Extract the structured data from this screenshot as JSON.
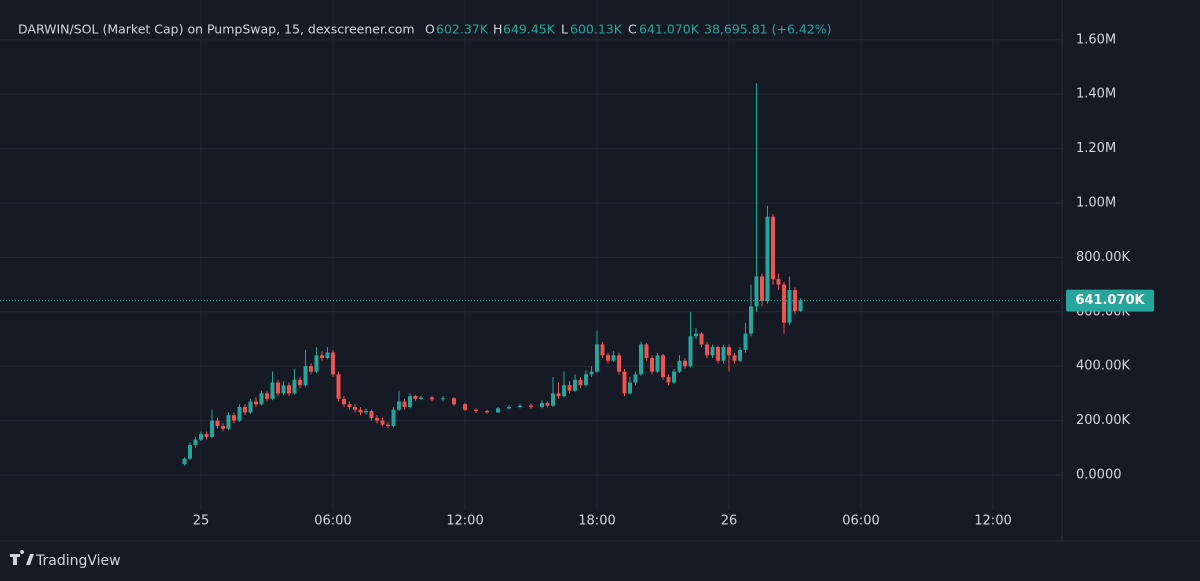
{
  "chart_data": {
    "type": "candlestick",
    "title": "DARWIN/SOL (Market Cap) on PumpSwap, 15, dexscreener.com",
    "header": {
      "o_key": "O",
      "o": "602.37K",
      "h_key": "H",
      "h": "649.45K",
      "l_key": "L",
      "l": "600.13K",
      "c_key": "C",
      "c": "641.070K",
      "change": "38,695.81 (+6.42%)"
    },
    "up_color": "#26a69a",
    "down_color": "#ef5350",
    "grid": true,
    "xlim": [
      -9.136,
      39.136
    ],
    "xticks": [
      {
        "value": 0,
        "label": "25"
      },
      {
        "value": 6,
        "label": "06:00"
      },
      {
        "value": 12,
        "label": "12:00"
      },
      {
        "value": 18,
        "label": "18:00"
      },
      {
        "value": 24,
        "label": "26"
      },
      {
        "value": 30,
        "label": "06:00"
      },
      {
        "value": 36,
        "label": "12:00"
      }
    ],
    "ylim": [
      -128700,
      1746300
    ],
    "yticks": [
      {
        "value": 0,
        "label": "0.0000"
      },
      {
        "value": 200000,
        "label": "200.00K"
      },
      {
        "value": 400000,
        "label": "400.00K"
      },
      {
        "value": 600000,
        "label": "600.00K"
      },
      {
        "value": 800000,
        "label": "800.00K"
      },
      {
        "value": 1000000,
        "label": "1.00M"
      },
      {
        "value": 1200000,
        "label": "1.20M"
      },
      {
        "value": 1400000,
        "label": "1.40M"
      },
      {
        "value": 1600000,
        "label": "1.60M"
      }
    ],
    "last_price": {
      "value": 641070,
      "label": "641.070K"
    },
    "x": [
      -0.75,
      -0.5,
      -0.25,
      0,
      0.25,
      0.5,
      0.75,
      1,
      1.25,
      1.5,
      1.75,
      2,
      2.25,
      2.5,
      2.75,
      3,
      3.25,
      3.5,
      3.75,
      4,
      4.25,
      4.5,
      4.75,
      5,
      5.25,
      5.5,
      5.75,
      6,
      6.25,
      6.5,
      6.75,
      7,
      7.25,
      7.5,
      7.75,
      8,
      8.25,
      8.5,
      8.75,
      9,
      9.25,
      9.5,
      9.75,
      10,
      10.5,
      11,
      11.5,
      12,
      12.5,
      13,
      13.5,
      14,
      14.5,
      15,
      15.5,
      15.75,
      16,
      16.25,
      16.5,
      16.75,
      17,
      17.25,
      17.5,
      17.75,
      18,
      18.25,
      18.5,
      18.75,
      19,
      19.25,
      19.5,
      19.75,
      20,
      20.25,
      20.5,
      20.75,
      21,
      21.25,
      21.5,
      21.75,
      22,
      22.25,
      22.5,
      22.75,
      23,
      23.25,
      23.5,
      23.75,
      24,
      24.25,
      24.5,
      24.75,
      25,
      25.25,
      25.5,
      25.75,
      26,
      26.25,
      26.5,
      26.75,
      27,
      27.25
    ],
    "open": [
      40000,
      60000,
      110000,
      130000,
      150000,
      140000,
      200000,
      180000,
      170000,
      220000,
      200000,
      250000,
      230000,
      270000,
      260000,
      300000,
      280000,
      340000,
      300000,
      330000,
      300000,
      350000,
      330000,
      400000,
      380000,
      440000,
      430000,
      450000,
      370000,
      280000,
      260000,
      250000,
      240000,
      230000,
      235000,
      210000,
      200000,
      185000,
      180000,
      240000,
      270000,
      250000,
      290000,
      280000,
      285000,
      278000,
      282000,
      260000,
      240000,
      235000,
      230000,
      245000,
      250000,
      255000,
      250000,
      265000,
      255000,
      300000,
      290000,
      330000,
      310000,
      350000,
      330000,
      370000,
      380000,
      480000,
      440000,
      420000,
      440000,
      380000,
      300000,
      340000,
      370000,
      480000,
      430000,
      380000,
      440000,
      360000,
      340000,
      380000,
      420000,
      400000,
      510000,
      520000,
      480000,
      440000,
      470000,
      420000,
      470000,
      440000,
      420000,
      460000,
      520000,
      620000,
      730000,
      640000,
      950000,
      720000,
      700000,
      560000,
      680000,
      602370
    ],
    "high": [
      65000,
      120000,
      140000,
      160000,
      160000,
      240000,
      210000,
      190000,
      230000,
      230000,
      260000,
      260000,
      280000,
      285000,
      310000,
      310000,
      380000,
      350000,
      345000,
      340000,
      390000,
      360000,
      460000,
      410000,
      470000,
      455000,
      470000,
      460000,
      380000,
      290000,
      270000,
      260000,
      250000,
      245000,
      240000,
      220000,
      210000,
      195000,
      250000,
      310000,
      280000,
      300000,
      295000,
      292000,
      290000,
      290000,
      286000,
      265000,
      245000,
      240000,
      250000,
      256000,
      262000,
      262000,
      275000,
      270000,
      360000,
      340000,
      380000,
      345000,
      370000,
      360000,
      385000,
      400000,
      530000,
      490000,
      450000,
      455000,
      450000,
      390000,
      360000,
      380000,
      490000,
      485000,
      440000,
      450000,
      445000,
      370000,
      390000,
      440000,
      430000,
      600000,
      540000,
      525000,
      490000,
      480000,
      475000,
      480000,
      480000,
      450000,
      470000,
      560000,
      700000,
      1440000,
      740000,
      990000,
      960000,
      740000,
      710000,
      730000,
      690000,
      649450
    ],
    "low": [
      35000,
      55000,
      100000,
      125000,
      130000,
      135000,
      170000,
      160000,
      165000,
      190000,
      195000,
      220000,
      225000,
      250000,
      255000,
      270000,
      275000,
      290000,
      295000,
      290000,
      295000,
      320000,
      325000,
      370000,
      375000,
      420000,
      425000,
      360000,
      270000,
      250000,
      240000,
      230000,
      220000,
      222000,
      200000,
      190000,
      178000,
      172000,
      175000,
      235000,
      240000,
      245000,
      272000,
      275000,
      272000,
      270000,
      255000,
      235000,
      228000,
      225000,
      228000,
      240000,
      245000,
      244000,
      245000,
      248000,
      250000,
      280000,
      285000,
      300000,
      305000,
      320000,
      325000,
      360000,
      375000,
      430000,
      410000,
      415000,
      370000,
      290000,
      295000,
      330000,
      365000,
      420000,
      370000,
      375000,
      350000,
      330000,
      335000,
      375000,
      390000,
      395000,
      500000,
      470000,
      430000,
      430000,
      410000,
      410000,
      380000,
      410000,
      415000,
      450000,
      510000,
      600000,
      620000,
      630000,
      700000,
      680000,
      520000,
      550000,
      590000,
      600130
    ],
    "close": [
      60000,
      110000,
      130000,
      150000,
      140000,
      200000,
      180000,
      170000,
      220000,
      200000,
      250000,
      230000,
      270000,
      260000,
      300000,
      280000,
      340000,
      300000,
      330000,
      300000,
      350000,
      330000,
      400000,
      380000,
      440000,
      430000,
      450000,
      370000,
      280000,
      260000,
      250000,
      240000,
      230000,
      235000,
      210000,
      200000,
      185000,
      180000,
      240000,
      270000,
      250000,
      290000,
      280000,
      285000,
      278000,
      282000,
      260000,
      240000,
      235000,
      230000,
      245000,
      250000,
      255000,
      250000,
      265000,
      255000,
      300000,
      290000,
      330000,
      310000,
      350000,
      330000,
      370000,
      380000,
      480000,
      440000,
      420000,
      440000,
      380000,
      300000,
      340000,
      370000,
      480000,
      430000,
      380000,
      440000,
      360000,
      340000,
      380000,
      420000,
      400000,
      510000,
      520000,
      480000,
      440000,
      470000,
      420000,
      470000,
      440000,
      420000,
      460000,
      520000,
      620000,
      730000,
      640000,
      950000,
      720000,
      700000,
      560000,
      680000,
      602370,
      641070
    ]
  },
  "footer": {
    "brand": "TradingView"
  }
}
